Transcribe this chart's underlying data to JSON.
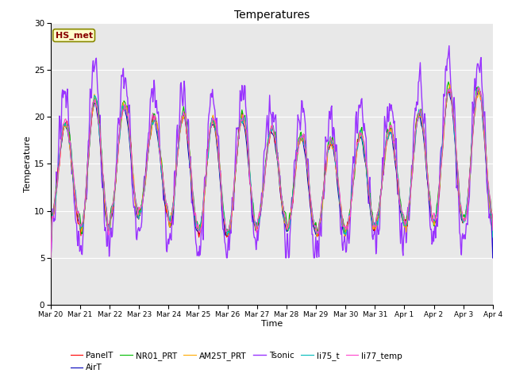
{
  "title": "Temperatures",
  "xlabel": "Time",
  "ylabel": "Temperature",
  "annotation": "HS_met",
  "ylim": [
    0,
    30
  ],
  "yticks": [
    0,
    5,
    10,
    15,
    20,
    25,
    30
  ],
  "series": {
    "PanelT": {
      "color": "#ff0000",
      "lw": 0.8,
      "zorder": 4
    },
    "AirT": {
      "color": "#0000bb",
      "lw": 0.8,
      "zorder": 3
    },
    "NR01_PRT": {
      "color": "#00bb00",
      "lw": 0.8,
      "zorder": 4
    },
    "AM25T_PRT": {
      "color": "#ffaa00",
      "lw": 0.8,
      "zorder": 4
    },
    "Tsonic": {
      "color": "#9933ff",
      "lw": 1.0,
      "zorder": 2
    },
    "li75_t": {
      "color": "#00bbbb",
      "lw": 0.8,
      "zorder": 4
    },
    "li77_temp": {
      "color": "#ff44cc",
      "lw": 0.8,
      "zorder": 4
    }
  },
  "legend_order": [
    "PanelT",
    "AirT",
    "NR01_PRT",
    "AM25T_PRT",
    "Tsonic",
    "li75_t",
    "li77_temp"
  ],
  "bg_color": "#e8e8e8",
  "annotation_bg": "#ffffcc",
  "annotation_text_color": "#880000",
  "annotation_border_color": "#888800",
  "x_labels": [
    "Mar 20",
    "Mar 21",
    "Mar 22",
    "Mar 23",
    "Mar 24",
    "Mar 25",
    "Mar 26",
    "Mar 27",
    "Mar 28",
    "Mar 29",
    "Mar 30",
    "Mar 31",
    "Apr 1",
    "Apr 2",
    "Apr 3",
    "Apr 4"
  ]
}
